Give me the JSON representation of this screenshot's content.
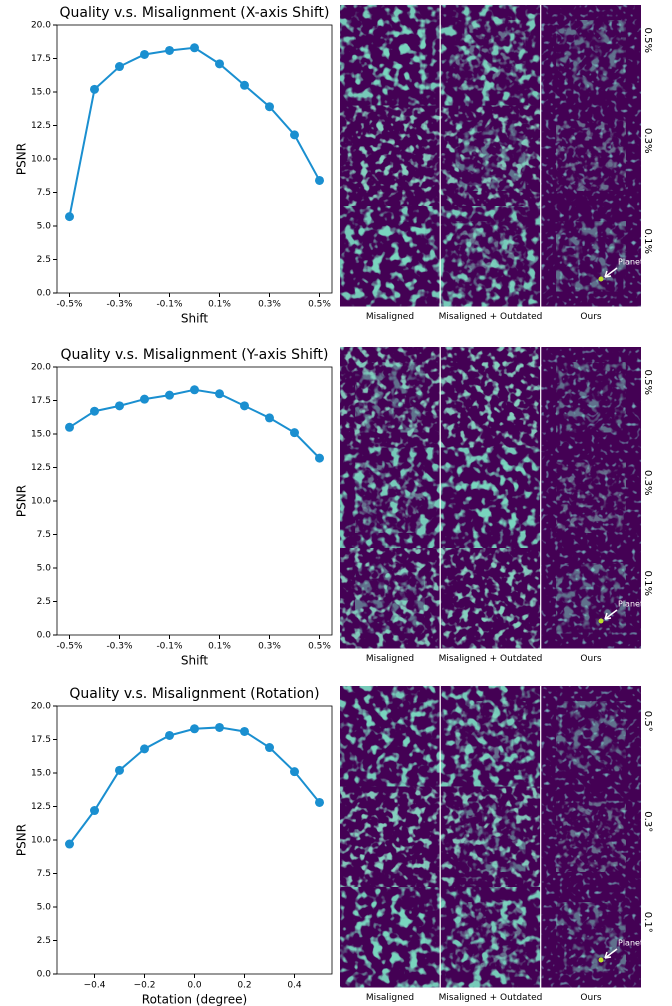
{
  "chart_data": [
    {
      "type": "line",
      "title": "Quality v.s. Misalignment (X-axis Shift)",
      "xlabel": "Shift",
      "ylabel": "PSNR",
      "color": "#1a8fd0",
      "x": [
        -0.5,
        -0.4,
        -0.3,
        -0.2,
        -0.1,
        0.0,
        0.1,
        0.2,
        0.3,
        0.4,
        0.5
      ],
      "values": [
        5.7,
        15.2,
        16.9,
        17.8,
        18.1,
        18.3,
        17.1,
        15.5,
        13.9,
        11.8,
        8.4
      ],
      "xlim": [
        -0.55,
        0.55
      ],
      "xticks": [
        {
          "value": -0.5,
          "label": "-0.5%"
        },
        {
          "value": -0.3,
          "label": "-0.3%"
        },
        {
          "value": -0.1,
          "label": "-0.1%"
        },
        {
          "value": 0.1,
          "label": "0.1%"
        },
        {
          "value": 0.3,
          "label": "0.3%"
        },
        {
          "value": 0.5,
          "label": "0.5%"
        }
      ],
      "ylim": [
        0,
        20
      ],
      "yticks": [
        {
          "value": 0,
          "label": "0.0"
        },
        2.5,
        {
          "value": 5,
          "label": "5.0"
        },
        7.5,
        {
          "value": 10,
          "label": "10.0"
        },
        12.5,
        {
          "value": 15,
          "label": "15.0"
        },
        17.5,
        {
          "value": 20,
          "label": "20.0"
        }
      ],
      "image_panels": {
        "columns": [
          "Misaligned",
          "Misaligned + Outdated",
          "Ours"
        ],
        "rows": [
          "0.5%",
          "0.3%",
          "0.1%"
        ],
        "annotation": "Planet"
      }
    },
    {
      "type": "line",
      "title": "Quality v.s. Misalignment (Y-axis Shift)",
      "xlabel": "Shift",
      "ylabel": "PSNR",
      "color": "#1a8fd0",
      "x": [
        -0.5,
        -0.4,
        -0.3,
        -0.2,
        -0.1,
        0.0,
        0.1,
        0.2,
        0.3,
        0.4,
        0.5
      ],
      "values": [
        15.5,
        16.7,
        17.1,
        17.6,
        17.9,
        18.3,
        18.0,
        17.1,
        16.2,
        15.1,
        13.2
      ],
      "xlim": [
        -0.55,
        0.55
      ],
      "xticks": [
        {
          "value": -0.5,
          "label": "-0.5%"
        },
        {
          "value": -0.3,
          "label": "-0.3%"
        },
        {
          "value": -0.1,
          "label": "-0.1%"
        },
        {
          "value": 0.1,
          "label": "0.1%"
        },
        {
          "value": 0.3,
          "label": "0.3%"
        },
        {
          "value": 0.5,
          "label": "0.5%"
        }
      ],
      "ylim": [
        0,
        20
      ],
      "yticks": [
        {
          "value": 0,
          "label": "0.0"
        },
        2.5,
        {
          "value": 5,
          "label": "5.0"
        },
        7.5,
        {
          "value": 10,
          "label": "10.0"
        },
        12.5,
        {
          "value": 15,
          "label": "15.0"
        },
        17.5,
        {
          "value": 20,
          "label": "20.0"
        }
      ],
      "image_panels": {
        "columns": [
          "Misaligned",
          "Misaligned + Outdated",
          "Ours"
        ],
        "rows": [
          "0.5%",
          "0.3%",
          "0.1%"
        ],
        "annotation": "Planet"
      }
    },
    {
      "type": "line",
      "title": "Quality v.s. Misalignment (Rotation)",
      "xlabel": "Rotation (degree)",
      "ylabel": "PSNR",
      "color": "#1a8fd0",
      "x": [
        -0.5,
        -0.4,
        -0.3,
        -0.2,
        -0.1,
        0.0,
        0.1,
        0.2,
        0.3,
        0.4,
        0.5
      ],
      "values": [
        9.7,
        12.2,
        15.2,
        16.8,
        17.8,
        18.3,
        18.4,
        18.1,
        16.9,
        15.1,
        12.8
      ],
      "xlim": [
        -0.55,
        0.55
      ],
      "xticks": [
        {
          "value": -0.4,
          "label": "−0.4"
        },
        {
          "value": -0.2,
          "label": "−0.2"
        },
        {
          "value": 0,
          "label": "0.0"
        },
        0.2,
        0.4
      ],
      "ylim": [
        0,
        20
      ],
      "yticks": [
        {
          "value": 0,
          "label": "0.0"
        },
        2.5,
        {
          "value": 5,
          "label": "5.0"
        },
        7.5,
        {
          "value": 10,
          "label": "10.0"
        },
        12.5,
        {
          "value": 15,
          "label": "15.0"
        },
        17.5,
        {
          "value": 20,
          "label": "20.0"
        }
      ],
      "image_panels": {
        "columns": [
          "Misaligned",
          "Misaligned + Outdated",
          "Ours"
        ],
        "rows": [
          "0.5°",
          "0.3°",
          "0.1°"
        ],
        "annotation": "Planet"
      }
    }
  ]
}
